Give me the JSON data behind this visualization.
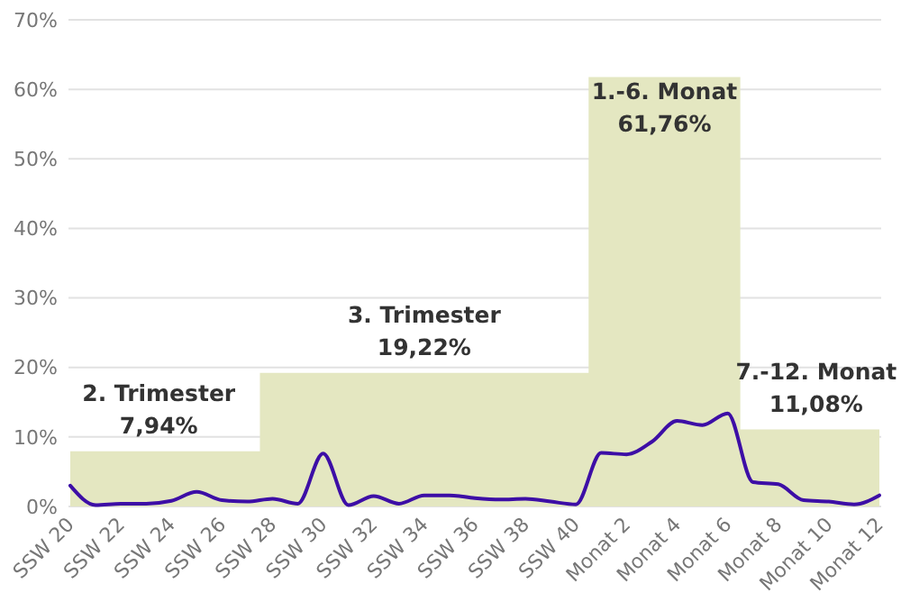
{
  "chart_data": {
    "type": "line",
    "categories": [
      "SSW 20",
      null,
      "SSW 22",
      null,
      "SSW 24",
      null,
      "SSW 26",
      null,
      "SSW 28",
      null,
      "SSW 30",
      null,
      "SSW 32",
      null,
      "SSW 34",
      null,
      "SSW 36",
      null,
      "SSW 38",
      null,
      "SSW 40",
      null,
      "Monat 2",
      null,
      "Monat 4",
      null,
      "Monat 6",
      null,
      "Monat 8",
      null,
      "Monat 10",
      null,
      "Monat 12"
    ],
    "series": [
      {
        "type": "area",
        "color": "#e4e7c1",
        "values": [
          7.94,
          7.94,
          7.94,
          7.94,
          7.94,
          7.94,
          7.94,
          7.94,
          19.22,
          19.22,
          19.22,
          19.22,
          19.22,
          19.22,
          19.22,
          19.22,
          19.22,
          19.22,
          19.22,
          19.22,
          19.22,
          61.76,
          61.76,
          61.76,
          61.76,
          61.76,
          61.76,
          11.08,
          11.08,
          11.08,
          11.08,
          11.08,
          11.08
        ],
        "value_labels": [
          null,
          null,
          null,
          "7,94%",
          null,
          null,
          null,
          null,
          null,
          null,
          null,
          null,
          null,
          null,
          "19,22%",
          null,
          null,
          null,
          null,
          null,
          null,
          null,
          null,
          "61,76%",
          null,
          null,
          null,
          null,
          null,
          "11,08%",
          null,
          null,
          null
        ]
      },
      {
        "type": "line",
        "color": "#3d0ea6",
        "values": [
          3.0,
          0.2,
          0.4,
          0.4,
          0.8,
          2.1,
          0.9,
          0.7,
          1.1,
          0.4,
          7.6,
          0.2,
          1.5,
          0.4,
          1.6,
          1.6,
          1.2,
          1.0,
          1.1,
          0.7,
          0.3,
          7.7,
          7.5,
          9.3,
          12.3,
          11.7,
          13.4,
          3.5,
          3.2,
          0.9,
          0.7,
          0.3,
          1.6
        ]
      }
    ],
    "annotations": [
      "2. Trimester",
      "3. Trimester",
      "1.-6. Monat",
      "7.-12. Monat"
    ],
    "ylim": [
      0,
      70
    ],
    "yticks": [
      {
        "value": 0,
        "label": "0%"
      },
      {
        "value": 10,
        "label": "10%"
      },
      {
        "value": 20,
        "label": "20%"
      },
      {
        "value": 30,
        "label": "30%"
      },
      {
        "value": 40,
        "label": "40%"
      },
      {
        "value": 50,
        "label": "50%"
      },
      {
        "value": 60,
        "label": "60%"
      },
      {
        "value": 70,
        "label": "70%"
      }
    ],
    "grid": "y",
    "marker": "none",
    "line_style": "solid"
  }
}
